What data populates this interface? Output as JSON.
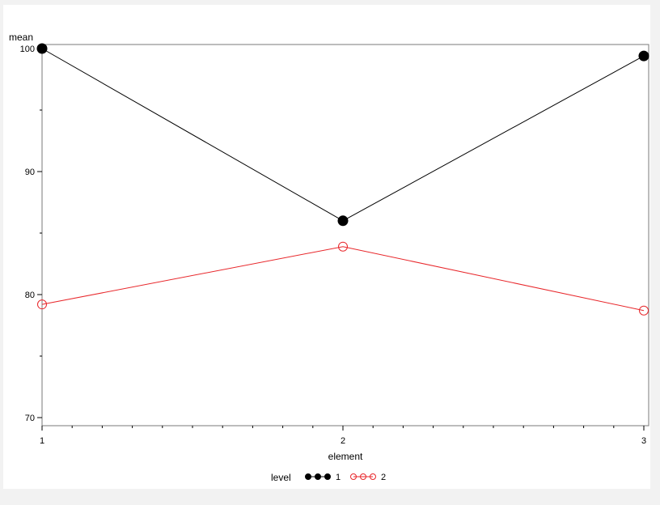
{
  "chart_data": {
    "type": "line",
    "title": "",
    "xlabel": "element",
    "ylabel": "mean",
    "x": [
      1,
      2,
      3
    ],
    "xlim": [
      1,
      3
    ],
    "ylim": [
      70,
      100
    ],
    "yticks": [
      70,
      80,
      90,
      100
    ],
    "xticks": [
      1,
      2,
      3
    ],
    "x_minor_ticks_per_interval": 9,
    "y_minor_ticks_per_interval": 1,
    "grid": false,
    "legend": {
      "title": "level",
      "placement": "bottom-center"
    },
    "series": [
      {
        "name": "1",
        "values": [
          100.0,
          86.0,
          99.4
        ],
        "color": "#000000",
        "marker": "filled-circle"
      },
      {
        "name": "2",
        "values": [
          79.2,
          83.9,
          78.7
        ],
        "color": "#e8262a",
        "marker": "open-circle"
      }
    ]
  }
}
